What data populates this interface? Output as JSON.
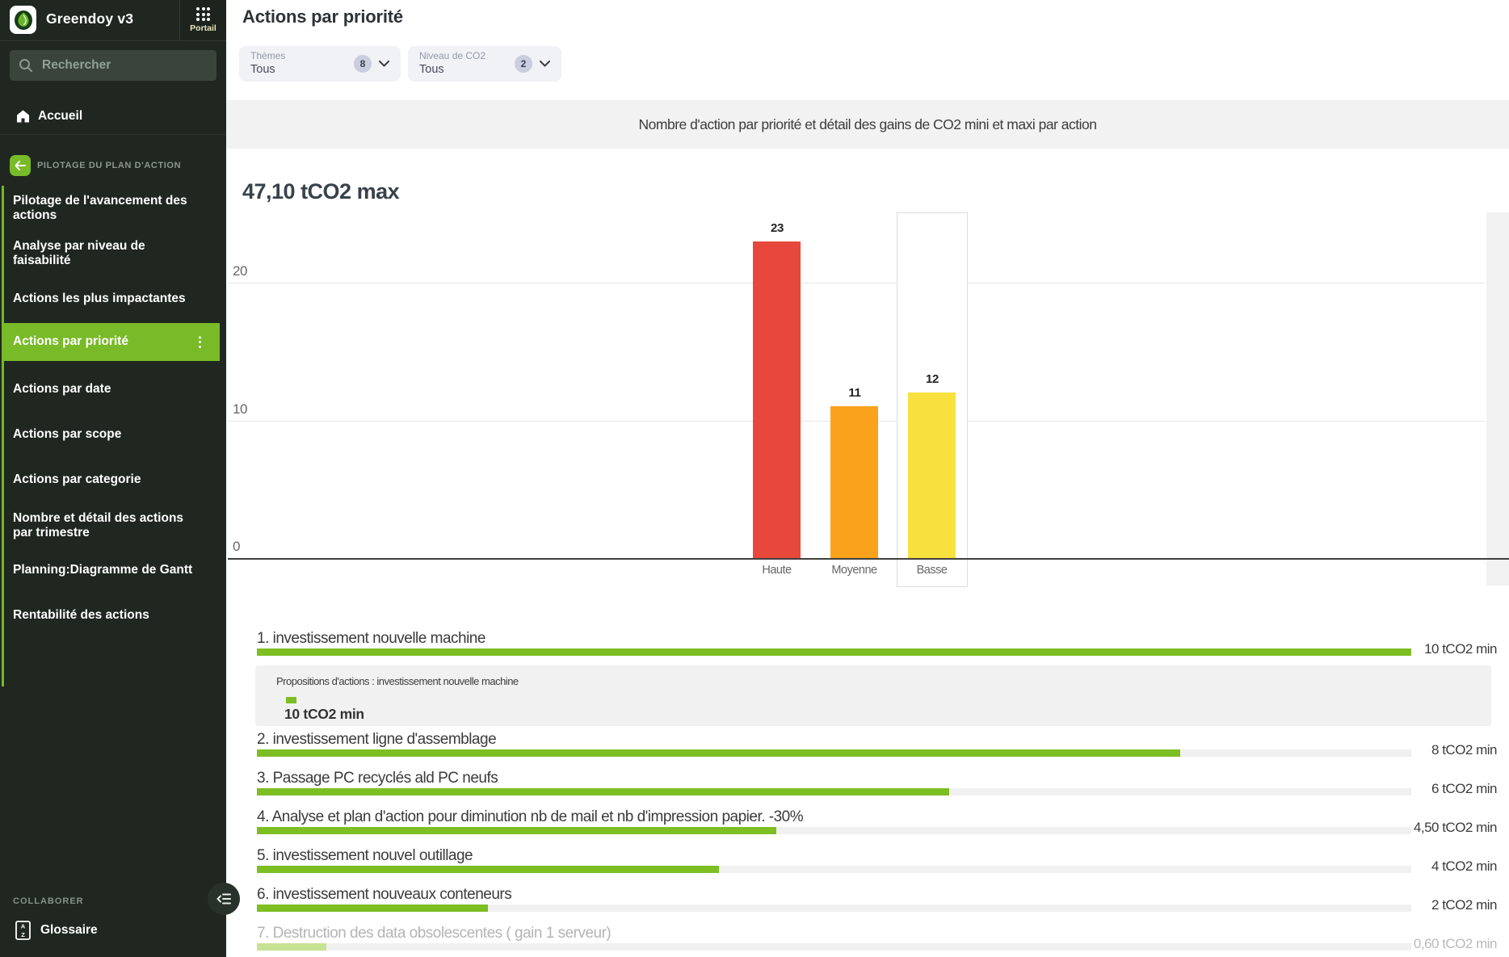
{
  "sidebar": {
    "app_title": "Greendoy v3",
    "portal_label": "Portail",
    "search_placeholder": "Rechercher",
    "home_label": "Accueil",
    "section_label": "PILOTAGE DU PLAN D'ACTION",
    "menu_items": [
      {
        "label": "Pilotage de l'avancement des actions",
        "selected": false
      },
      {
        "label": "Analyse par niveau de faisabilité",
        "selected": false
      },
      {
        "label": "Actions les plus impactantes",
        "selected": false
      },
      {
        "label": "Actions par priorité",
        "selected": true
      },
      {
        "label": "Actions par date",
        "selected": false
      },
      {
        "label": "Actions par scope",
        "selected": false
      },
      {
        "label": "Actions par categorie",
        "selected": false
      },
      {
        "label": "Nombre et détail des actions par trimestre",
        "selected": false
      },
      {
        "label": "Planning:Diagramme de Gantt",
        "selected": false
      },
      {
        "label": "Rentabilité des actions",
        "selected": false
      }
    ],
    "footer_section": "COLLABORER",
    "glossary_label": "Glossaire"
  },
  "header": {
    "title": "Actions par priorité"
  },
  "filters": [
    {
      "label": "Thèmes",
      "value": "Tous",
      "count": "8"
    },
    {
      "label": "Niveau de CO2",
      "value": "Tous",
      "count": "2"
    }
  ],
  "chart_data": [
    {
      "type": "bar",
      "title": "47,10 tCO2 max",
      "subtitle": "Nombre d'action par priorité et détail des gains de CO2 mini et maxi par action",
      "categories": [
        "Haute",
        "Moyenne",
        "Basse"
      ],
      "values": [
        23,
        11,
        12
      ],
      "colors": [
        "#e8473c",
        "#faa21b",
        "#f8e13e"
      ],
      "ylim": [
        0,
        25
      ],
      "yticks": [
        0,
        10,
        20
      ],
      "selected_category_index": 2,
      "grid": true,
      "legend": "none"
    },
    {
      "type": "bar",
      "orientation": "horizontal",
      "max_value": 10,
      "bar_color": "#7dbe23",
      "items": [
        {
          "label": "1. investissement nouvelle machine",
          "value": 10,
          "value_label": "10 tCO2 min",
          "dimmed": false
        },
        {
          "label": "2. investissement ligne d'assemblage",
          "value": 8,
          "value_label": "8 tCO2 min",
          "dimmed": false
        },
        {
          "label": "3. Passage PC recyclés ald PC neufs",
          "value": 6,
          "value_label": "6 tCO2 min",
          "dimmed": false
        },
        {
          "label": "4. Analyse et plan d'action pour diminution nb de mail et nb d'impression papier. -30%",
          "value": 4.5,
          "value_label": "4,50 tCO2 min",
          "dimmed": false
        },
        {
          "label": "5. investissement nouvel outillage",
          "value": 4,
          "value_label": "4 tCO2 min",
          "dimmed": false
        },
        {
          "label": "6. investissement nouveaux conteneurs",
          "value": 2,
          "value_label": "2 tCO2 min",
          "dimmed": false
        },
        {
          "label": "7. Destruction des data obsolescentes ( gain 1 serveur)",
          "value": 0.6,
          "value_label": "0,60 tCO2 min",
          "dimmed": true
        }
      ]
    }
  ],
  "tooltip": {
    "header": "Propositions d'actions : investissement nouvelle machine",
    "value": "10 tCO2 min"
  },
  "colors": {
    "accent_green": "#79ba28",
    "sidebar_bg": "#1f2720",
    "bar_green": "#7dbe23",
    "priority_high": "#e8473c",
    "priority_medium": "#faa21b",
    "priority_low": "#f8e13e"
  },
  "icons": {
    "logo": "leaf-drop",
    "portal": "grid-3x3-dots",
    "search": "magnifier",
    "home": "house",
    "back": "arrow-left",
    "selected_menu": "kebab-vertical",
    "glossary": "az-book",
    "collapse": "collapse-left",
    "filter": "chevron-down"
  }
}
